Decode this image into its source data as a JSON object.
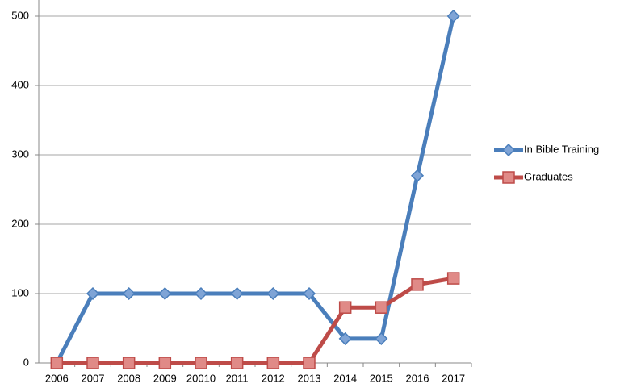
{
  "chart_data": {
    "type": "line",
    "categories": [
      "2006",
      "2007",
      "2008",
      "2009",
      "20010",
      "2011",
      "2012",
      "2013",
      "2014",
      "2015",
      "2016",
      "2017"
    ],
    "series": [
      {
        "name": "In Bible Training",
        "color": "#4a7ebb",
        "marker": "diamond",
        "values": [
          0,
          100,
          100,
          100,
          100,
          100,
          100,
          100,
          35,
          35,
          270,
          500
        ]
      },
      {
        "name": "Graduates",
        "color": "#be4b48",
        "marker": "square",
        "values": [
          0,
          0,
          0,
          0,
          0,
          0,
          0,
          0,
          80,
          80,
          113,
          122
        ]
      }
    ],
    "ylim": [
      0,
      500
    ],
    "yticks": [
      0,
      100,
      200,
      300,
      400,
      500
    ],
    "grid": true,
    "legend": "right"
  }
}
